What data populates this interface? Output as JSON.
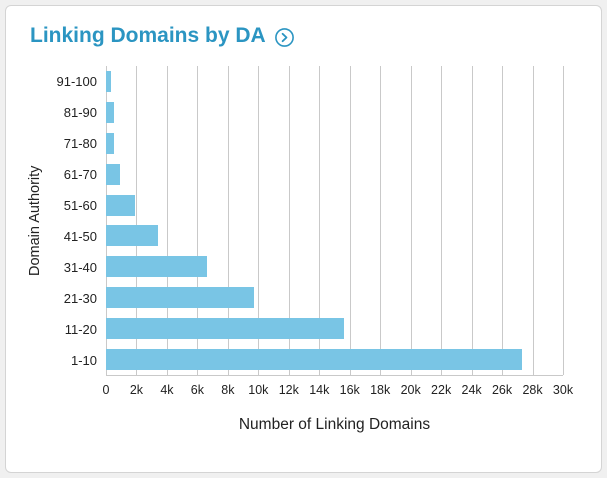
{
  "header": {
    "title": "Linking Domains by DA",
    "icon": "circle-chevron-right-icon"
  },
  "colors": {
    "title": "#2b95c2",
    "bar": "#79c5e5",
    "grid": "#c9c9c9",
    "card_border": "#d4d4d4",
    "page_bg": "#f0f0f0",
    "axis_text": "#222222"
  },
  "chart_data": {
    "type": "bar",
    "orientation": "horizontal",
    "title": "Linking Domains by DA",
    "categories": [
      "91-100",
      "81-90",
      "71-80",
      "61-70",
      "51-60",
      "41-50",
      "31-40",
      "21-30",
      "11-20",
      "1-10"
    ],
    "values": [
      350,
      550,
      550,
      950,
      1900,
      3400,
      6600,
      9700,
      15600,
      27300
    ],
    "xlabel": "Number of Linking Domains",
    "ylabel": "Domain Authority",
    "xlim": [
      0,
      30000
    ],
    "xtick_step": 2000,
    "xtick_labels": [
      "0",
      "2k",
      "4k",
      "6k",
      "8k",
      "10k",
      "12k",
      "14k",
      "16k",
      "18k",
      "20k",
      "22k",
      "24k",
      "26k",
      "28k",
      "30k"
    ],
    "grid": true,
    "legend": false
  }
}
